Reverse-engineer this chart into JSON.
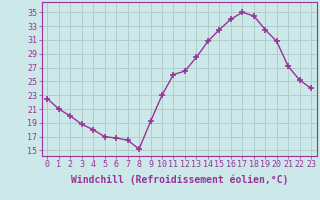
{
  "x": [
    0,
    1,
    2,
    3,
    4,
    5,
    6,
    7,
    8,
    9,
    10,
    11,
    12,
    13,
    14,
    15,
    16,
    17,
    18,
    19,
    20,
    21,
    22,
    23
  ],
  "y": [
    22.5,
    21.0,
    20.0,
    18.8,
    18.0,
    17.0,
    16.8,
    16.5,
    15.2,
    19.2,
    23.0,
    26.0,
    26.5,
    28.5,
    30.8,
    32.5,
    34.0,
    35.0,
    34.5,
    32.5,
    30.8,
    27.2,
    25.2,
    24.0
  ],
  "line_color": "#993399",
  "marker": "+",
  "marker_size": 4,
  "marker_lw": 1.2,
  "line_width": 1.0,
  "background_color": "#cce8e8",
  "grid_color": "#b0cccc",
  "xlabel": "Windchill (Refroidissement éolien,°C)",
  "xlabel_fontsize": 7,
  "ylabel_ticks": [
    15,
    17,
    19,
    21,
    23,
    25,
    27,
    29,
    31,
    33,
    35
  ],
  "ylim": [
    14.2,
    36.5
  ],
  "xlim": [
    -0.5,
    23.5
  ],
  "tick_fontsize": 6,
  "figsize": [
    3.2,
    2.0
  ],
  "dpi": 100
}
